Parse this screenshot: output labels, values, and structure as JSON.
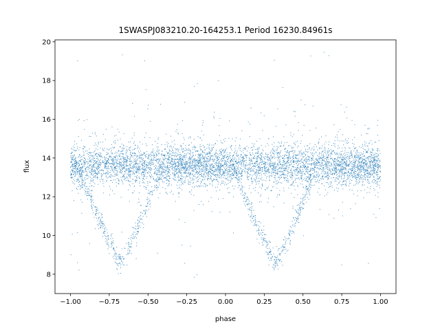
{
  "chart_data": {
    "type": "scatter",
    "title": "1SWASPJ083210.20-164253.1 Period 16230.84961s",
    "xlabel": "phase",
    "ylabel": "flux",
    "xlim": [
      -1.1,
      1.1
    ],
    "ylim": [
      7.0,
      20.1
    ],
    "xticks": [
      -1.0,
      -0.75,
      -0.5,
      -0.25,
      0.0,
      0.25,
      0.5,
      0.75,
      1.0
    ],
    "xtick_labels": [
      "−1.00",
      "−0.75",
      "−0.50",
      "−0.25",
      "0.00",
      "0.25",
      "0.50",
      "0.75",
      "1.00"
    ],
    "yticks": [
      8,
      10,
      12,
      14,
      16,
      18,
      20
    ],
    "ytick_labels": [
      "8",
      "10",
      "12",
      "14",
      "16",
      "18",
      "20"
    ],
    "grid": false,
    "marker_color": "#1f77b4",
    "series": [
      {
        "phase_range": [
          -1.0,
          1.0
        ],
        "baseline_flux": 13.6,
        "baseline_scatter": 0.5,
        "eclipse_centers": [
          -0.68,
          0.32
        ],
        "eclipse_min_flux": 8.6,
        "eclipse_half_width": 0.27,
        "outlier_flux_range": [
          7.7,
          19.5
        ]
      }
    ]
  }
}
